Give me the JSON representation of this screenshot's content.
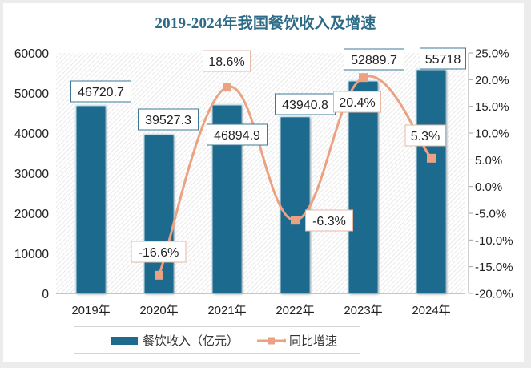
{
  "chart_data": {
    "type": "bar+line",
    "title": "2019-2024年我国餐饮收入及增速",
    "categories": [
      "2019年",
      "2020年",
      "2021年",
      "2022年",
      "2023年",
      "2024年"
    ],
    "series": [
      {
        "name": "餐饮收入（亿元）",
        "type": "bar",
        "axis": "left",
        "color": "#1f6b8e",
        "values": [
          46720.7,
          39527.3,
          46894.9,
          43940.8,
          52889.7,
          55718
        ],
        "labels": [
          "46720.7",
          "39527.3",
          "46894.9",
          "43940.8",
          "52889.7",
          "55718"
        ]
      },
      {
        "name": "同比增速",
        "type": "line",
        "axis": "right",
        "color": "#eba283",
        "values": [
          null,
          -16.6,
          18.6,
          -6.3,
          20.4,
          5.3
        ],
        "labels": [
          "",
          "-16.6%",
          "18.6%",
          "-6.3%",
          "20.4%",
          "5.3%"
        ]
      }
    ],
    "y_left": {
      "range": [
        0,
        60000
      ],
      "ticks": [
        "0",
        "10000",
        "20000",
        "30000",
        "40000",
        "50000",
        "60000"
      ]
    },
    "y_right": {
      "range": [
        -20,
        25
      ],
      "ticks": [
        "-20.0%",
        "-15.0%",
        "-10.0%",
        "-5.0%",
        "0.0%",
        "5.0%",
        "10.0%",
        "15.0%",
        "20.0%",
        "25.0%"
      ]
    },
    "xlabel": "",
    "ylabel": "",
    "grid": false,
    "legend": "bottom"
  }
}
